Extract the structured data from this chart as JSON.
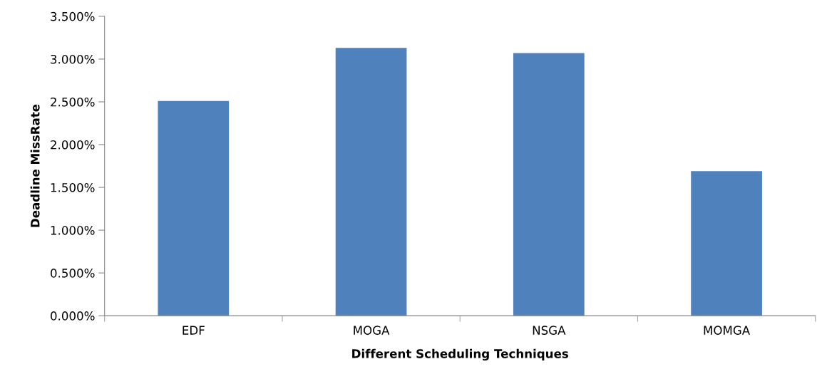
{
  "chart_data": {
    "type": "bar",
    "xlabel": "Different Scheduling Techniques",
    "ylabel": "Deadline MissRate",
    "categories": [
      "EDF",
      "MOGA",
      "NSGA",
      "MOMGA"
    ],
    "series": [
      {
        "color": "#4f81bd",
        "values": [
          2.51,
          3.13,
          3.07,
          1.69
        ]
      }
    ],
    "ylim": [
      0,
      3.5
    ],
    "yticks": [
      {
        "value": 0,
        "label": "0.000%"
      },
      {
        "value": 0.5,
        "label": "0.500%"
      },
      {
        "value": 1,
        "label": "1.000%"
      },
      {
        "value": 1.5,
        "label": "1.500%"
      },
      {
        "value": 2,
        "label": "2.000%"
      },
      {
        "value": 2.5,
        "label": "2.500%"
      },
      {
        "value": 3,
        "label": "3.000%"
      },
      {
        "value": 3.5,
        "label": "3.500%"
      }
    ],
    "grid": false
  }
}
